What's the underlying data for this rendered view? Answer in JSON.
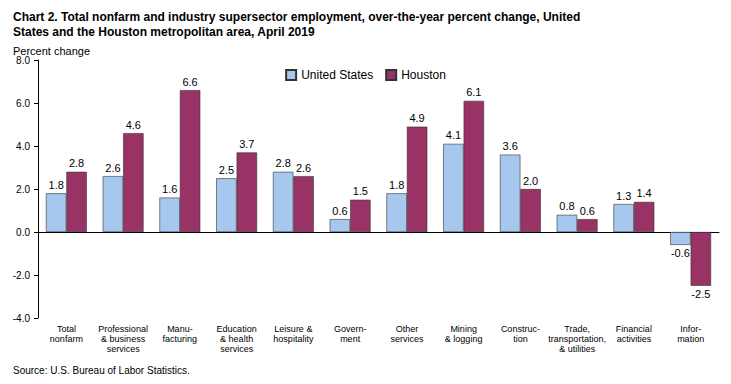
{
  "chart_data": {
    "type": "bar",
    "title": "Chart 2. Total nonfarm and industry supersector employment, over-the-year percent change, United States and the Houston metropolitan area, April 2019",
    "y_label": "Percent change",
    "note": "Source: U.S. Bureau of Labor Statistics.",
    "categories": [
      "Total\nnonfarm",
      "Professional\n& business\nservices",
      "Manu-\nfacturing",
      "Education\n& health\nservices",
      "Leisure &\nhospitality",
      "Govern-\nment",
      "Other\nservices",
      "Mining\n& logging",
      "Construc-\ntion",
      "Trade,\ntransportation,\n& utilities",
      "Financial\nactivities",
      "Infor-\nmation"
    ],
    "series": [
      {
        "name": "United States",
        "color": "#a6c8ee",
        "values": [
          1.8,
          2.6,
          1.6,
          2.5,
          2.8,
          0.6,
          1.8,
          4.1,
          3.6,
          0.8,
          1.3,
          -0.6
        ],
        "value_labels": [
          "1.8",
          "2.6",
          "1.6",
          "2.5",
          "2.8",
          "0.6",
          "1.8",
          "4.1",
          "3.6",
          "0.8",
          "1.3",
          "-0.6"
        ]
      },
      {
        "name": "Houston",
        "color": "#993366",
        "values": [
          2.8,
          4.6,
          6.6,
          3.7,
          2.6,
          1.5,
          4.9,
          6.1,
          2.0,
          0.6,
          1.4,
          -2.5
        ],
        "value_labels": [
          "2.8",
          "4.6",
          "6.6",
          "3.7",
          "2.6",
          "1.5",
          "4.9",
          "6.1",
          "2.0",
          "0.6",
          "1.4",
          "-2.5"
        ]
      }
    ],
    "ylim": [
      -4,
      8
    ],
    "yticks": [
      {
        "value": -4,
        "label": "-4.0"
      },
      {
        "value": -2,
        "label": "-2.0"
      },
      {
        "value": 0,
        "label": "0.0"
      },
      {
        "value": 2,
        "label": "2.0"
      },
      {
        "value": 4,
        "label": "4.0"
      },
      {
        "value": 6,
        "label": "6.0"
      },
      {
        "value": 8,
        "label": "8.0"
      }
    ],
    "grid": false,
    "legend": "top",
    "data_labels": true
  }
}
